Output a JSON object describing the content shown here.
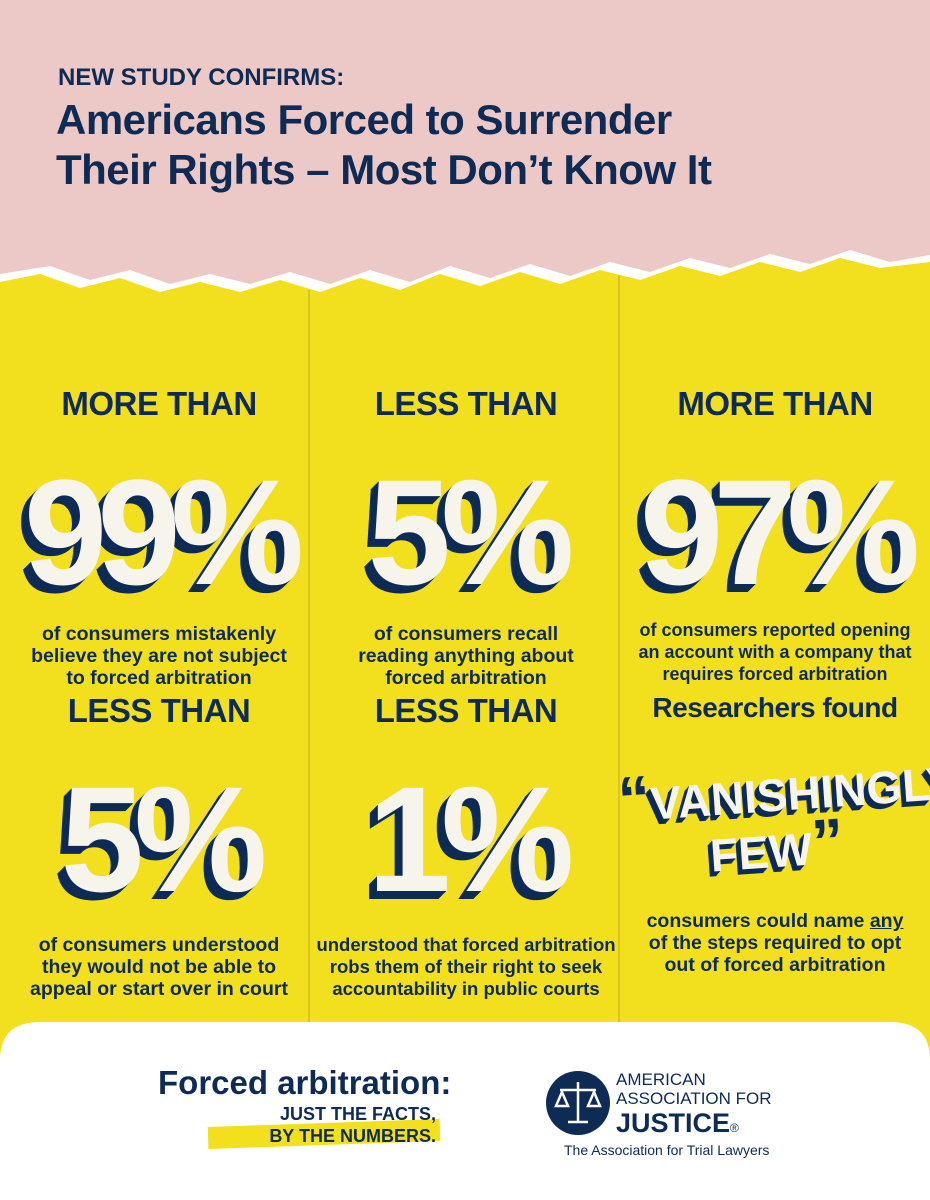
{
  "header": {
    "kicker": "NEW STUDY CONFIRMS:",
    "title_lines": [
      "Americans Forced to Surrender",
      "Their Rights – Most Don’t Know It"
    ]
  },
  "stats": [
    {
      "qualifier": "MORE THAN",
      "figure": "99%",
      "description_lines": [
        "of consumers mistakenly",
        "believe they are not subject",
        "to forced arbitration"
      ]
    },
    {
      "qualifier": "LESS THAN",
      "figure": "5%",
      "description_lines": [
        "of consumers recall",
        "reading anything about",
        "forced arbitration"
      ]
    },
    {
      "qualifier": "MORE THAN",
      "figure": "97%",
      "description_lines": [
        "of consumers reported opening",
        "an account with a company that",
        "requires forced arbitration"
      ]
    },
    {
      "qualifier": "LESS THAN",
      "figure": "5%",
      "description_lines": [
        "of consumers understood",
        "they would not be able to",
        "appeal or start over in court"
      ]
    },
    {
      "qualifier": "LESS THAN",
      "figure": "1%",
      "description_lines": [
        "understood that forced arbitration",
        "robs them of their right to seek",
        "accountability in public courts"
      ]
    },
    {
      "qualifier": "Researchers found",
      "open_quote": "“",
      "quote_lines": [
        "VANISHINGLY",
        "FEW"
      ],
      "close_quote": "”",
      "description_lines": [
        "consumers could name",
        "any",
        "of the steps required to opt",
        "out of forced arbitration"
      ]
    }
  ],
  "footer": {
    "title": "Forced arbitration:",
    "tagline_lines": [
      "JUST THE FACTS,",
      "BY THE NUMBERS."
    ],
    "logo": {
      "name_lines": [
        "AMERICAN",
        "ASSOCIATION FOR",
        "JUSTICE"
      ],
      "registered": "®",
      "subtitle": "The Association for Trial Lawyers"
    }
  }
}
